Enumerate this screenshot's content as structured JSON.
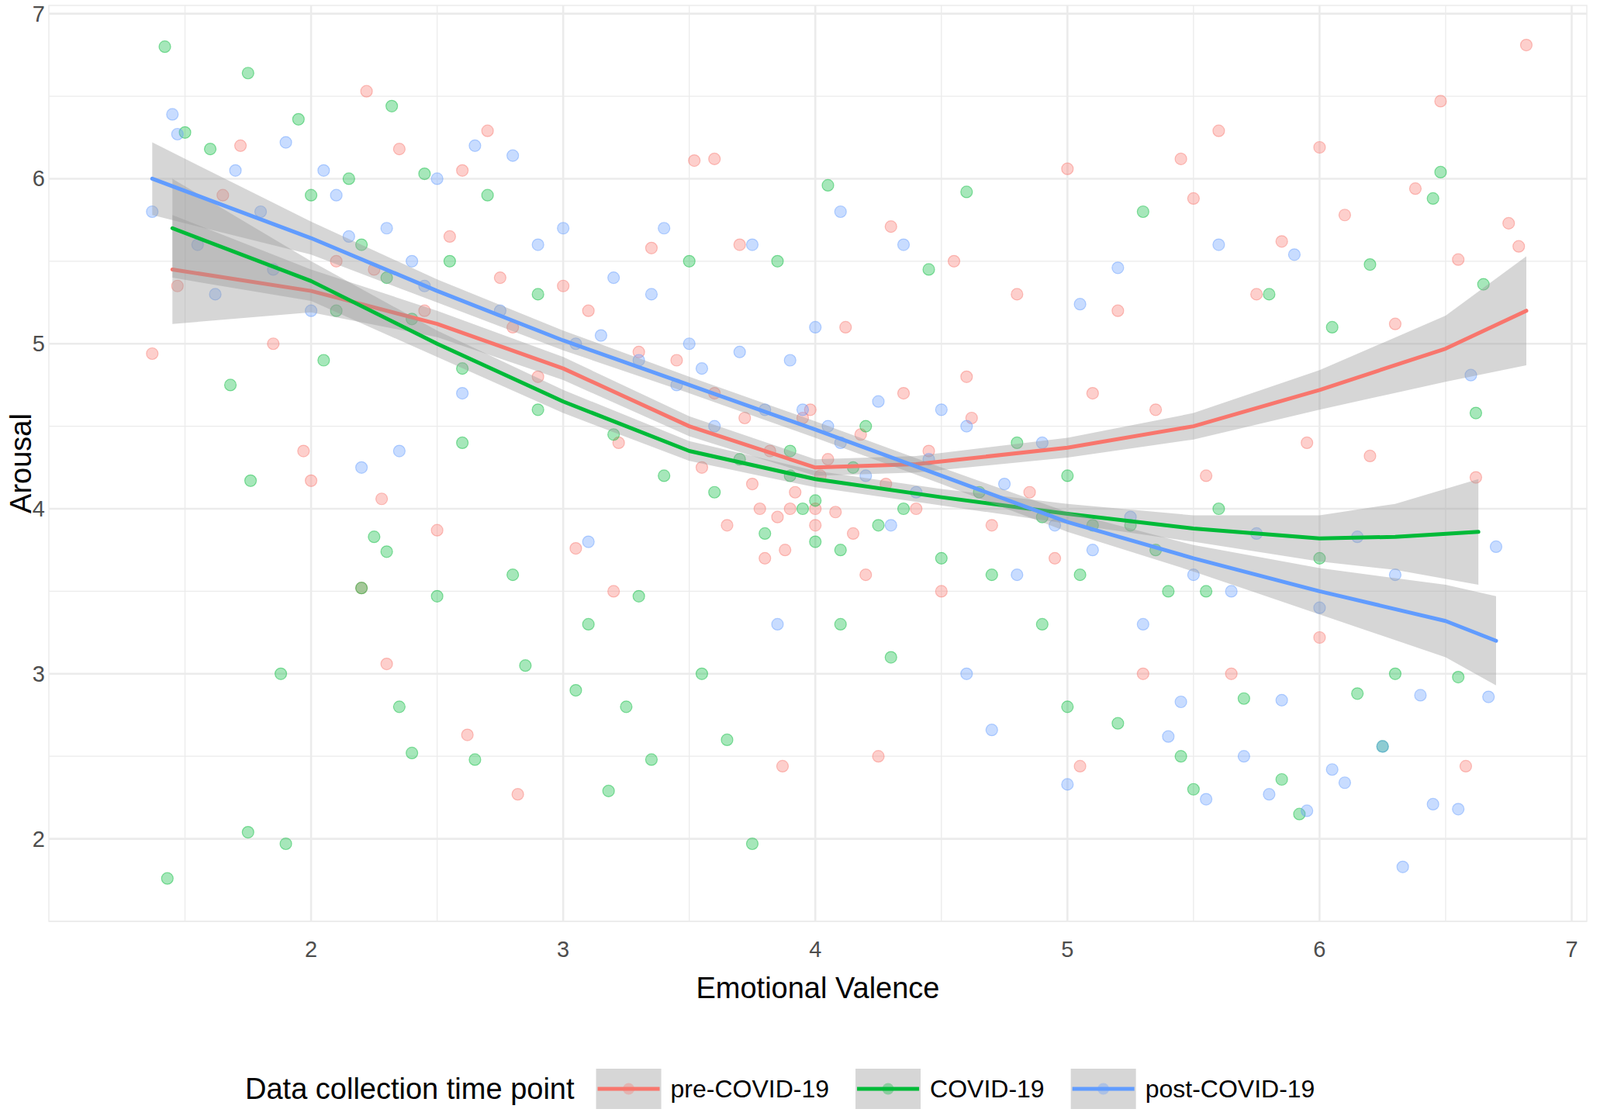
{
  "chart_data": {
    "type": "scatter",
    "x_label": "Emotional Valence",
    "y_label": "Arousal",
    "legend_title": "Data collection time point",
    "legend": "bottom",
    "grid": true,
    "xlim": [
      0.96,
      7.06
    ],
    "ylim": [
      1.5,
      7.05
    ],
    "xticks": [
      2,
      3,
      4,
      5,
      6,
      7
    ],
    "yticks": [
      2,
      3,
      4,
      5,
      6,
      7
    ],
    "series": [
      {
        "name": "pre-COVID-19",
        "color": "#F8766D",
        "marker": "circle",
        "x": [
          1.37,
          1.47,
          1.72,
          1.85,
          1.97,
          2.0,
          2.2,
          2.22,
          2.28,
          2.3,
          2.35,
          2.45,
          2.5,
          2.6,
          2.62,
          2.7,
          2.75,
          2.82,
          2.9,
          3.05,
          3.1,
          3.2,
          3.22,
          3.35,
          3.45,
          3.52,
          3.6,
          3.7,
          3.75,
          3.8,
          3.87,
          3.9,
          3.95,
          4.0,
          4.05,
          4.12,
          4.2,
          4.25,
          4.3,
          4.4,
          4.5,
          4.55,
          4.6,
          4.7,
          4.8,
          4.85,
          4.95,
          5.0,
          5.05,
          5.1,
          5.2,
          5.3,
          5.35,
          5.45,
          5.5,
          5.6,
          5.55,
          5.65,
          5.75,
          5.85,
          5.95,
          6.0,
          6.0,
          6.1,
          6.2,
          6.3,
          6.38,
          6.48,
          6.55,
          6.58,
          6.62,
          6.75,
          6.79,
          6.82,
          4.0,
          3.85,
          4.15,
          3.6,
          2.1,
          1.65,
          3.55,
          3.65,
          3.72,
          3.78,
          3.82,
          3.88,
          3.92,
          3.98,
          4.02,
          4.08,
          4.18,
          4.28,
          4.35,
          4.45,
          4.62,
          2.25,
          2.55,
          2.8,
          3.0,
          3.3
        ],
        "values": [
          4.94,
          5.35,
          6.2,
          5.0,
          4.35,
          4.17,
          3.52,
          6.53,
          4.06,
          3.06,
          6.18,
          5.2,
          3.87,
          6.05,
          2.63,
          6.29,
          5.4,
          2.27,
          4.8,
          3.76,
          5.2,
          3.5,
          4.4,
          5.58,
          4.9,
          6.11,
          6.12,
          5.6,
          4.15,
          3.7,
          2.44,
          4.0,
          4.55,
          3.9,
          4.3,
          5.1,
          3.6,
          2.5,
          5.71,
          4.0,
          3.5,
          5.5,
          4.8,
          3.9,
          5.3,
          4.1,
          3.7,
          6.06,
          2.44,
          4.7,
          5.2,
          3.0,
          4.6,
          6.12,
          5.88,
          6.29,
          4.2,
          3.0,
          5.3,
          5.62,
          4.4,
          6.19,
          3.22,
          5.78,
          4.32,
          5.12,
          5.94,
          6.47,
          5.51,
          2.44,
          4.19,
          5.73,
          5.59,
          6.81,
          4.0,
          3.95,
          3.85,
          4.7,
          5.5,
          5.9,
          4.25,
          3.9,
          4.55,
          4.0,
          4.35,
          3.75,
          4.1,
          4.6,
          4.2,
          3.98,
          4.45,
          4.15,
          4.7,
          4.35,
          4.55,
          5.45,
          5.65,
          5.1,
          5.35,
          4.95
        ],
        "smooth": {
          "x": [
            1.45,
            2.0,
            2.5,
            3.0,
            3.5,
            4.0,
            4.4,
            5.0,
            5.5,
            6.0,
            6.5,
            6.82
          ],
          "values": [
            5.45,
            5.32,
            5.12,
            4.85,
            4.5,
            4.25,
            4.27,
            4.37,
            4.5,
            4.72,
            4.97,
            5.2
          ],
          "lower": [
            5.12,
            5.19,
            5.04,
            4.78,
            4.44,
            4.2,
            4.22,
            4.31,
            4.42,
            4.6,
            4.77,
            4.87
          ],
          "upper": [
            5.78,
            5.45,
            5.2,
            4.92,
            4.56,
            4.3,
            4.32,
            4.43,
            4.58,
            4.84,
            5.17,
            5.53
          ]
        }
      },
      {
        "name": "COVID-19",
        "color": "#00BA38",
        "marker": "circle",
        "x": [
          1.42,
          1.43,
          1.5,
          1.6,
          1.68,
          1.75,
          1.75,
          1.76,
          1.88,
          1.9,
          1.95,
          2.0,
          2.05,
          2.15,
          2.2,
          2.25,
          2.3,
          2.32,
          2.35,
          2.4,
          2.45,
          2.5,
          2.55,
          2.6,
          2.65,
          2.7,
          2.8,
          2.85,
          2.9,
          3.05,
          3.1,
          3.18,
          3.25,
          3.3,
          3.35,
          3.5,
          3.55,
          3.65,
          3.75,
          3.85,
          3.9,
          4.0,
          4.05,
          4.1,
          4.2,
          4.3,
          4.45,
          4.6,
          4.7,
          4.8,
          4.9,
          5.0,
          5.1,
          5.2,
          5.3,
          5.4,
          5.45,
          5.5,
          5.6,
          5.7,
          5.8,
          5.85,
          5.92,
          6.0,
          6.05,
          6.15,
          6.2,
          6.25,
          6.3,
          6.45,
          6.48,
          6.55,
          6.62,
          6.65,
          3.95,
          4.25,
          3.7,
          5.0,
          2.1,
          2.2,
          3.6,
          3.8,
          3.9,
          4.0,
          4.1,
          4.15,
          4.35,
          4.5,
          4.65,
          4.9,
          5.05,
          5.25,
          5.35,
          5.55,
          2.3,
          2.4,
          2.6,
          2.9,
          3.2,
          3.4
        ],
        "values": [
          6.8,
          1.76,
          6.28,
          6.18,
          4.75,
          6.64,
          2.04,
          4.17,
          3.0,
          1.97,
          6.36,
          5.9,
          4.9,
          6.0,
          3.52,
          3.83,
          3.74,
          6.44,
          2.8,
          2.52,
          6.03,
          3.47,
          5.5,
          4.4,
          2.48,
          5.9,
          3.6,
          3.05,
          5.3,
          2.9,
          3.3,
          2.29,
          2.8,
          3.47,
          2.48,
          5.5,
          3.0,
          2.6,
          1.97,
          5.5,
          4.2,
          3.8,
          5.96,
          3.3,
          4.5,
          3.1,
          5.45,
          5.92,
          3.6,
          4.4,
          3.3,
          2.8,
          3.9,
          2.7,
          5.8,
          3.5,
          2.5,
          2.3,
          4.0,
          2.85,
          5.3,
          2.36,
          2.15,
          3.7,
          5.1,
          2.88,
          5.48,
          2.56,
          3.0,
          5.88,
          6.04,
          2.98,
          4.58,
          5.36,
          4.0,
          3.9,
          4.3,
          4.2,
          5.2,
          5.6,
          4.1,
          3.85,
          4.35,
          4.05,
          3.75,
          4.25,
          4.0,
          3.7,
          4.1,
          3.95,
          3.6,
          3.9,
          3.75,
          3.5,
          5.4,
          5.15,
          4.85,
          4.6,
          4.45,
          4.2
        ],
        "smooth": {
          "x": [
            1.45,
            2.0,
            2.5,
            3.0,
            3.5,
            4.0,
            4.5,
            5.0,
            5.5,
            6.0,
            6.3,
            6.63
          ],
          "values": [
            5.7,
            5.38,
            5.0,
            4.65,
            4.35,
            4.18,
            4.07,
            3.97,
            3.88,
            3.82,
            3.83,
            3.86
          ],
          "lower": [
            5.4,
            5.26,
            4.92,
            4.58,
            4.29,
            4.13,
            4.02,
            3.91,
            3.8,
            3.68,
            3.63,
            3.54
          ],
          "upper": [
            6.0,
            5.5,
            5.08,
            4.72,
            4.41,
            4.23,
            4.12,
            4.03,
            3.96,
            3.96,
            4.03,
            4.18
          ]
        }
      },
      {
        "name": "post-COVID-19",
        "color": "#619CFF",
        "marker": "circle",
        "x": [
          1.37,
          1.45,
          1.47,
          1.55,
          1.62,
          1.7,
          1.8,
          1.9,
          2.0,
          2.05,
          2.1,
          2.2,
          2.3,
          2.35,
          2.5,
          2.6,
          2.65,
          2.8,
          2.9,
          3.0,
          3.05,
          3.1,
          3.2,
          3.35,
          3.4,
          3.5,
          3.6,
          3.75,
          3.85,
          3.9,
          4.0,
          4.1,
          4.2,
          4.3,
          4.35,
          4.5,
          4.6,
          4.7,
          4.8,
          4.9,
          5.0,
          5.05,
          5.2,
          5.3,
          5.4,
          5.45,
          5.55,
          5.6,
          5.7,
          5.8,
          5.85,
          5.9,
          5.95,
          6.0,
          6.05,
          6.1,
          6.15,
          6.25,
          6.3,
          6.33,
          6.4,
          6.45,
          6.55,
          6.6,
          6.67,
          6.7,
          4.05,
          3.8,
          4.4,
          2.4,
          3.3,
          3.55,
          3.7,
          3.95,
          4.1,
          4.25,
          4.45,
          4.6,
          4.75,
          4.95,
          5.1,
          5.25,
          5.5,
          5.65,
          5.75,
          1.85,
          2.15,
          2.45,
          2.75,
          3.15,
          3.45
        ],
        "values": [
          5.8,
          6.39,
          6.27,
          5.6,
          5.3,
          6.05,
          5.8,
          6.22,
          5.2,
          6.05,
          5.9,
          4.25,
          5.7,
          4.35,
          6.0,
          4.7,
          6.2,
          6.14,
          5.6,
          5.7,
          5.0,
          3.8,
          5.4,
          5.3,
          5.7,
          5.0,
          4.5,
          5.6,
          3.3,
          4.9,
          5.1,
          5.8,
          4.2,
          3.9,
          5.6,
          4.6,
          3.0,
          2.66,
          3.6,
          4.4,
          2.33,
          5.24,
          5.46,
          3.3,
          2.62,
          2.83,
          2.24,
          5.6,
          2.5,
          2.27,
          2.84,
          5.54,
          2.17,
          3.4,
          2.42,
          2.34,
          3.83,
          2.56,
          3.6,
          1.83,
          2.87,
          2.21,
          2.18,
          4.81,
          2.86,
          3.77,
          4.5,
          4.6,
          4.1,
          5.5,
          4.9,
          4.85,
          4.95,
          4.6,
          4.4,
          4.65,
          4.3,
          4.5,
          4.15,
          3.9,
          3.75,
          3.95,
          3.6,
          3.5,
          3.85,
          5.45,
          5.65,
          5.35,
          5.2,
          5.05,
          4.75
        ],
        "smooth": {
          "x": [
            1.37,
            2.0,
            2.5,
            3.0,
            3.5,
            4.0,
            4.5,
            5.0,
            5.5,
            6.0,
            6.5,
            6.7
          ],
          "values": [
            6.0,
            5.64,
            5.32,
            5.02,
            4.75,
            4.48,
            4.2,
            3.92,
            3.7,
            3.5,
            3.32,
            3.2
          ],
          "lower": [
            5.78,
            5.54,
            5.25,
            4.96,
            4.7,
            4.43,
            4.15,
            3.86,
            3.62,
            3.36,
            3.1,
            2.93
          ],
          "upper": [
            6.22,
            5.74,
            5.39,
            5.08,
            4.8,
            4.53,
            4.25,
            3.98,
            3.78,
            3.64,
            3.54,
            3.47
          ]
        }
      }
    ]
  }
}
